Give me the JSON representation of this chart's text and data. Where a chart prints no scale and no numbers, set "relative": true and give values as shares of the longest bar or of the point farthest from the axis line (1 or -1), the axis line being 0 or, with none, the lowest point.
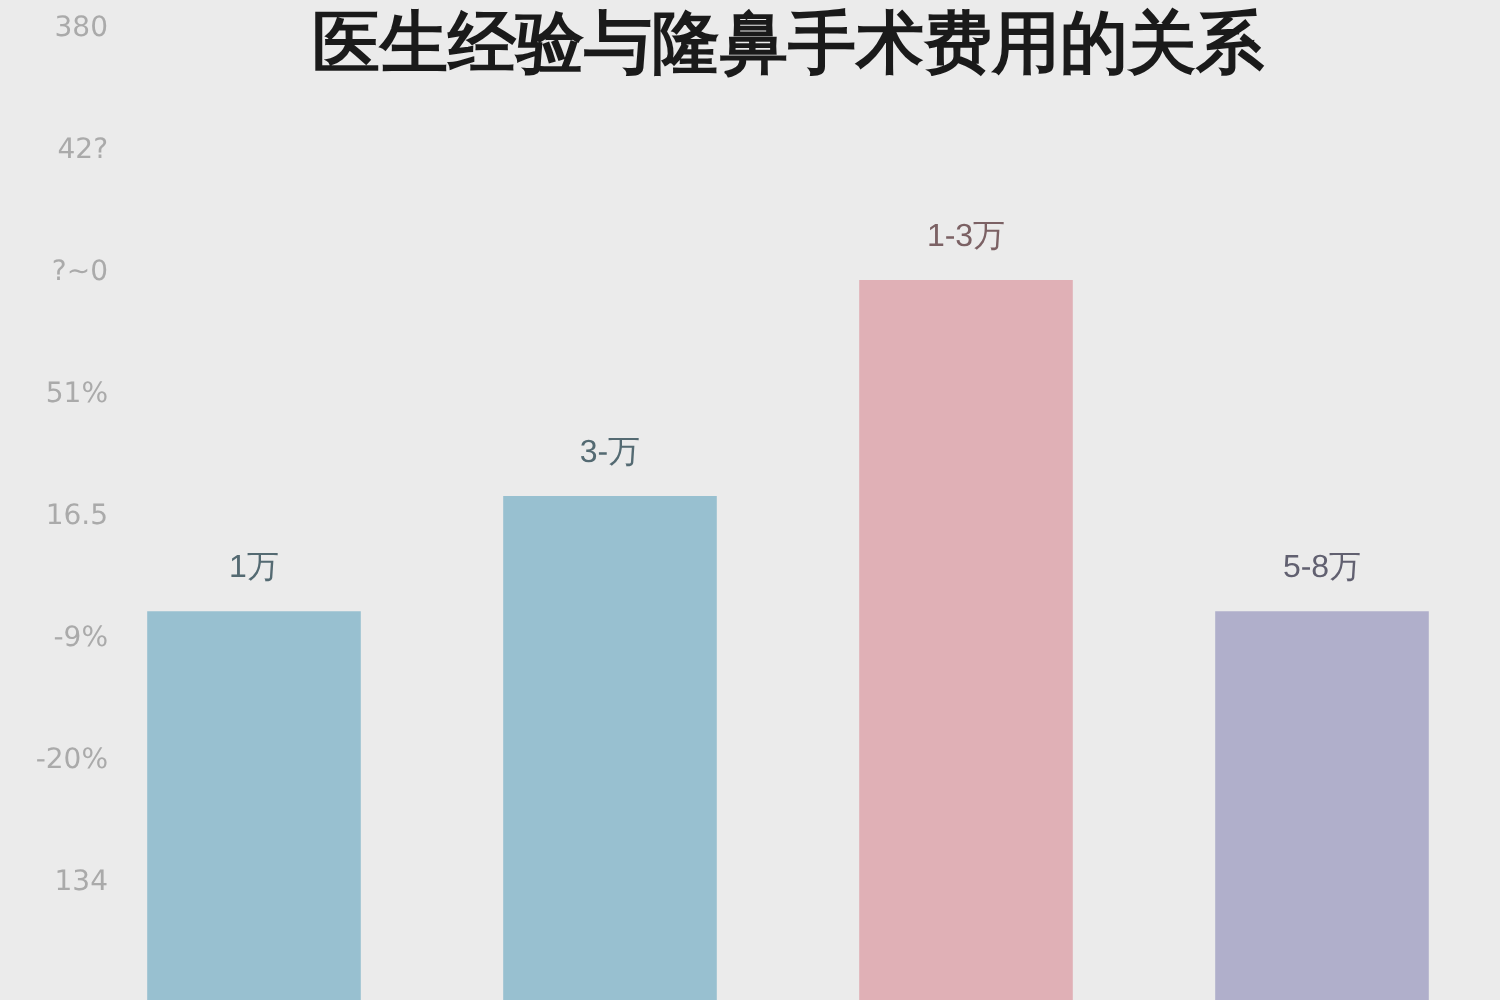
{
  "chart_data": {
    "type": "bar",
    "title": "医生经验与隆鼻手术费用的关系",
    "relative": true,
    "categories": [
      null,
      null,
      null,
      null
    ],
    "values": [
      0.54,
      0.7,
      1,
      0.54
    ],
    "colors": [
      "#98c0d0",
      "#98c0d0",
      "#e0b0b6",
      "#b0afcb"
    ],
    "annotations": [
      {
        "text": "1万",
        "y": 0.54
      },
      {
        "text": "3-万",
        "y": 0.7
      },
      {
        "text": "1-3万",
        "y": 1
      },
      {
        "text": "5-8万",
        "y": 0.54
      },
      "380",
      "42?",
      "?~0",
      "51%",
      "16.5",
      "-9%",
      "-20%",
      "134"
    ]
  }
}
